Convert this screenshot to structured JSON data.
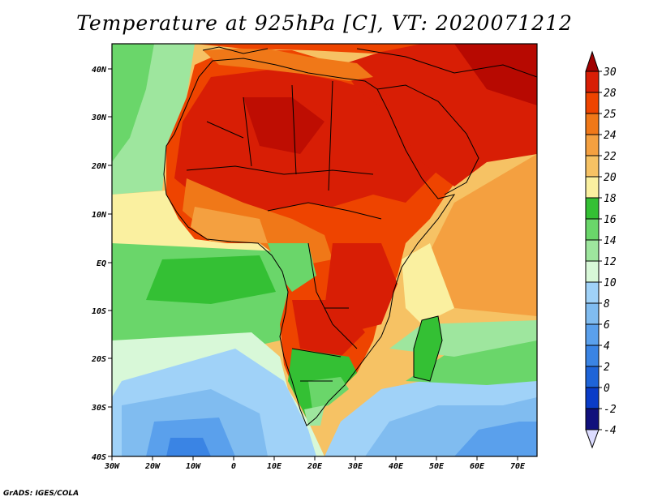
{
  "title": "Temperature at 925hPa [C], VT: 2020071212",
  "footer": "GrADS: IGES/COLA",
  "axes": {
    "lon_labels": [
      "30W",
      "20W",
      "10W",
      "0",
      "10E",
      "20E",
      "30E",
      "40E",
      "50E",
      "60E",
      "70E"
    ],
    "lat_labels": [
      "40N",
      "30N",
      "20N",
      "10N",
      "EQ",
      "10S",
      "20S",
      "30S",
      "40S"
    ]
  },
  "colorbar": {
    "labels": [
      "30",
      "28",
      "25",
      "24",
      "22",
      "20",
      "18",
      "16",
      "14",
      "12",
      "10",
      "8",
      "6",
      "4",
      "2",
      "0",
      "-2",
      "-4"
    ],
    "colors": [
      "#aa0000",
      "#d81e05",
      "#ee4400",
      "#f07818",
      "#f4a040",
      "#f6c264",
      "#faf0a0",
      "#34c034",
      "#6ad66a",
      "#9ee69e",
      "#d8f8d8",
      "#a0d2f8",
      "#80bcf0",
      "#5aa0ec",
      "#3a84e4",
      "#1e64d8",
      "#0a3cc8",
      "#10107c",
      "#e6e6ff"
    ],
    "top_arrow_color": "#a00000",
    "bottom_arrow_color": "#dcdcff"
  }
}
